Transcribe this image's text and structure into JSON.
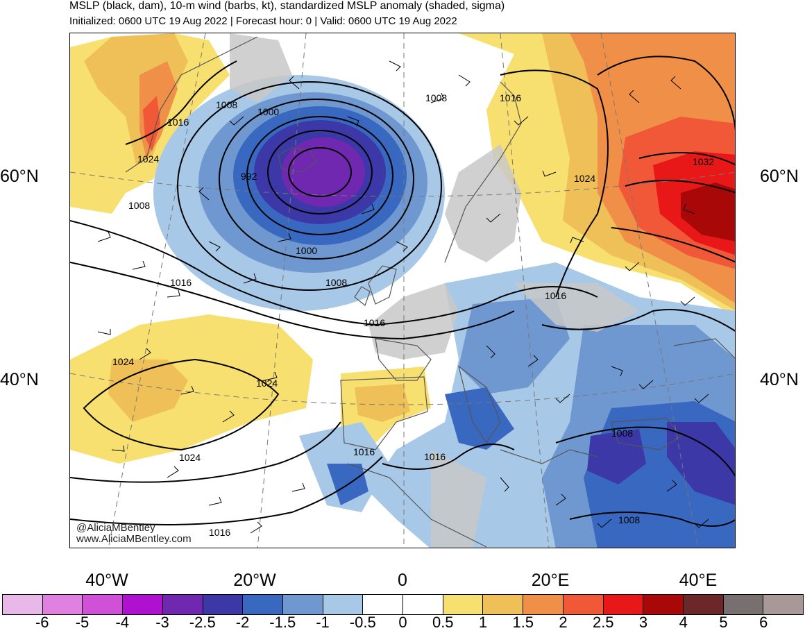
{
  "header": {
    "title": "MSLP (black, dam), 10-m wind (barbs, kt), standardized MSLP anomaly (shaded, sigma)",
    "subtitle": "Initialized: 0600 UTC 19 Aug 2022 | Forecast hour: 0 | Valid: 0600 UTC 19 Aug 2022"
  },
  "lat_labels": {
    "left_60": "60°N",
    "left_40": "40°N",
    "right_60": "60°N",
    "right_40": "40°N"
  },
  "lon_labels": [
    "40°W",
    "20°W",
    "0",
    "20°E",
    "40°E"
  ],
  "credits": {
    "handle": "@AliciaMBentley",
    "website": "www.AliciaMBentley.com"
  },
  "contour_labels": {
    "c1008_nw": "1008",
    "c1016_greenland": "1016",
    "c1024_greenland": "1024",
    "c1008_iceland": "1008",
    "c1000_top": "1000",
    "c992": "992",
    "c1000_bottom": "1000",
    "c1008_south": "1008",
    "c1016_atlantic": "1016",
    "c1016_mid": "1016",
    "c1008_norway": "1008",
    "c1016_scand": "1016",
    "c1024_finland": "1024",
    "c1032": "1032",
    "c1016_poland": "1016",
    "c1024_azores": "1024",
    "c1024_mid": "1024",
    "c1024_south": "1024",
    "c1016_iberia": "1016",
    "c1016_algeria": "1016",
    "c1008_turkey": "1008",
    "c1008_sw": "1008",
    "c1016_bottom": "1016"
  },
  "colorbar": {
    "colors": [
      "#e8b8e8",
      "#e080e0",
      "#d050d8",
      "#b010d0",
      "#7028b0",
      "#3c38a8",
      "#3868c0",
      "#7098d0",
      "#a8c8e8",
      "#ffffff",
      "#ffffff",
      "#f8e070",
      "#f0c058",
      "#f09048",
      "#f05838",
      "#e81818",
      "#a80808",
      "#6c2828",
      "#787070",
      "#a89898"
    ],
    "labels": [
      "-6",
      "-5",
      "-4",
      "-3",
      "-2.5",
      "-2",
      "-1.5",
      "-1",
      "-0.5",
      "0",
      "0.5",
      "1",
      "1.5",
      "2",
      "2.5",
      "3",
      "4",
      "5",
      "6"
    ]
  }
}
